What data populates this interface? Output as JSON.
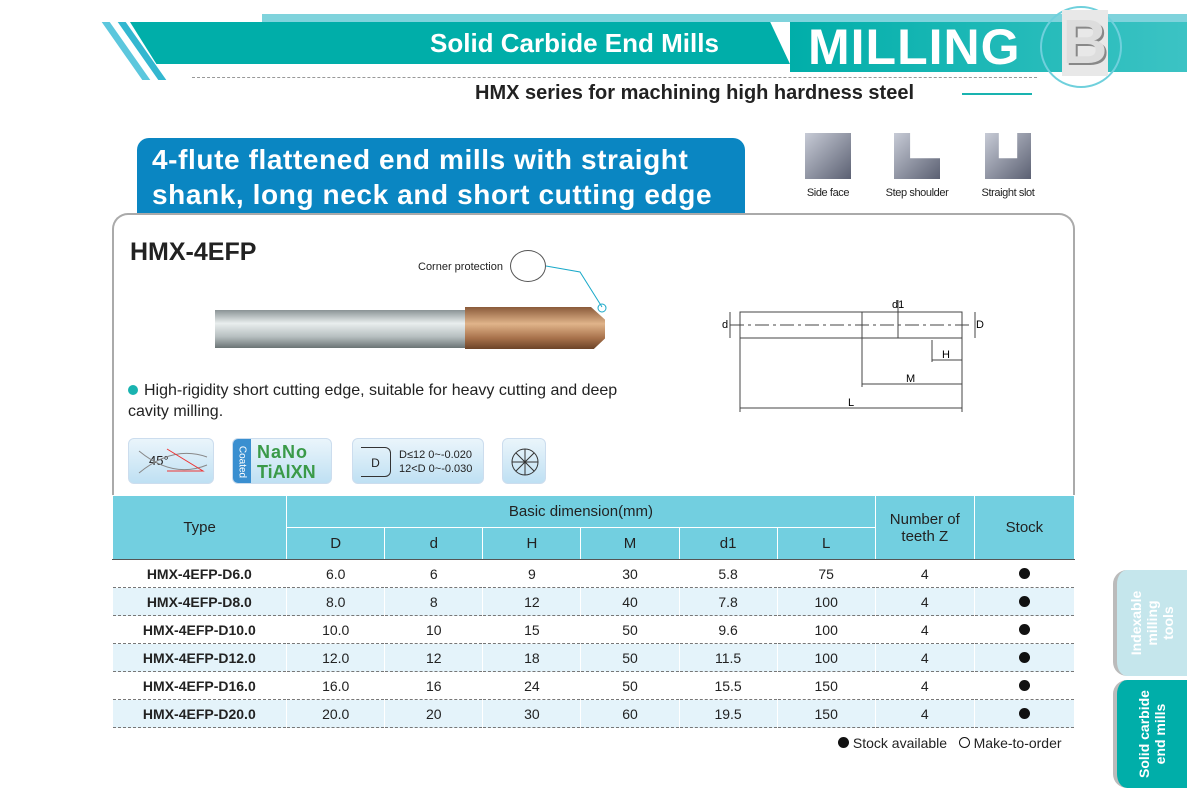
{
  "header": {
    "section": "Solid Carbide End Mills",
    "category": "MILLING",
    "letter": "B",
    "subtitle": "HMX series for machining high hardness steel"
  },
  "title": {
    "line1": "4-flute flattened end mills with straight",
    "line2": "shank, long neck and short cutting edge"
  },
  "operations": [
    {
      "label": "Side face",
      "icon": "side-face-icon"
    },
    {
      "label": "Step shoulder",
      "icon": "step-shoulder-icon"
    },
    {
      "label": "Straight slot",
      "icon": "straight-slot-icon"
    }
  ],
  "product": {
    "model": "HMX-4EFP",
    "corner_label": "Corner protection",
    "feature": "High-rigidity short cutting edge, suitable for heavy cutting and deep cavity milling."
  },
  "drawing": {
    "labels": [
      "d",
      "d1",
      "D",
      "H",
      "M",
      "L"
    ]
  },
  "badges": {
    "angle": "45°",
    "coated": "Coated",
    "nano": "NaNo",
    "coating": "TiAlXN",
    "tol1": "D≤12  0~-0.020",
    "tol2": "12<D  0~-0.030",
    "d": "D"
  },
  "table": {
    "h_type": "Type",
    "h_basic": "Basic dimension(mm)",
    "h_teeth": "Number of teeth Z",
    "h_stock": "Stock",
    "cols": [
      "D",
      "d",
      "H",
      "M",
      "d1",
      "L"
    ],
    "rows": [
      {
        "type": "HMX-4EFP-D6.0",
        "v": [
          "6.0",
          "6",
          "9",
          "30",
          "5.8",
          "75"
        ],
        "z": "4",
        "stock": true
      },
      {
        "type": "HMX-4EFP-D8.0",
        "v": [
          "8.0",
          "8",
          "12",
          "40",
          "7.8",
          "100"
        ],
        "z": "4",
        "stock": true
      },
      {
        "type": "HMX-4EFP-D10.0",
        "v": [
          "10.0",
          "10",
          "15",
          "50",
          "9.6",
          "100"
        ],
        "z": "4",
        "stock": true
      },
      {
        "type": "HMX-4EFP-D12.0",
        "v": [
          "12.0",
          "12",
          "18",
          "50",
          "11.5",
          "100"
        ],
        "z": "4",
        "stock": true
      },
      {
        "type": "HMX-4EFP-D16.0",
        "v": [
          "16.0",
          "16",
          "24",
          "50",
          "15.5",
          "150"
        ],
        "z": "4",
        "stock": true
      },
      {
        "type": "HMX-4EFP-D20.0",
        "v": [
          "20.0",
          "20",
          "30",
          "60",
          "19.5",
          "150"
        ],
        "z": "4",
        "stock": true
      }
    ]
  },
  "legend": {
    "available": "Stock available",
    "order": "Make-to-order"
  },
  "side_tabs": [
    {
      "label": "Indexable milling tools",
      "color": "#c5e6ec"
    },
    {
      "label": "Solid carbide end mills",
      "color": "#00aea9"
    }
  ]
}
